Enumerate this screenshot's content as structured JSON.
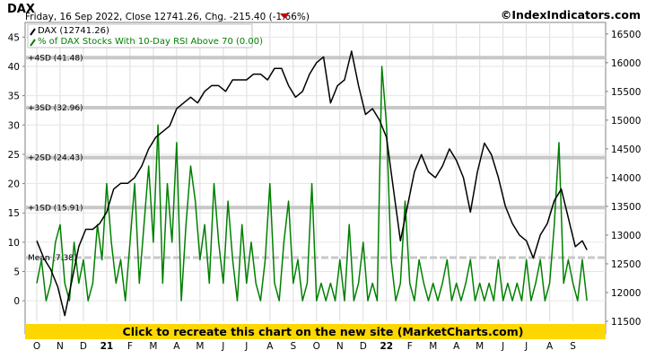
{
  "header": {
    "title": "DAX",
    "subtitle": "Friday, 16 Sep 2022, Close 12741.26, Chg. -215.40 (-1.66%)",
    "brand": "©IndexIndicators.com",
    "down_color": "#cc0000"
  },
  "banner": {
    "text": "Click to recreate this chart on the new site (MarketCharts.com)",
    "color": "#ffd700"
  },
  "chart_data": {
    "type": "line",
    "legend_position": "top-left",
    "x_categories": [
      "O",
      "N",
      "D",
      "21",
      "F",
      "M",
      "A",
      "M",
      "J",
      "J",
      "A",
      "S",
      "O",
      "N",
      "D",
      "22",
      "F",
      "M",
      "A",
      "M",
      "J",
      "J",
      "A",
      "S"
    ],
    "left_axis": {
      "ticks": [
        0,
        5,
        10,
        15,
        20,
        25,
        30,
        35,
        40,
        45
      ],
      "ylim": [
        -3.5,
        47.5
      ]
    },
    "right_axis": {
      "ticks": [
        11500,
        12000,
        12500,
        13000,
        13500,
        14000,
        14500,
        15000,
        15500,
        16000,
        16500
      ],
      "ylim": [
        11500,
        16700
      ]
    },
    "bands": [
      {
        "label": "+4SD (41.48)",
        "value": 41.48
      },
      {
        "label": "+3SD (32.96)",
        "value": 32.96
      },
      {
        "label": "+2SD (24.43)",
        "value": 24.43
      },
      {
        "label": "+1SD (15.91)",
        "value": 15.91
      },
      {
        "label": "Mean (7.38)",
        "value": 7.38
      }
    ],
    "series": [
      {
        "name": "DAX (12741.26)",
        "axis": "right",
        "color": "#000000",
        "x": [
          0,
          0.3,
          0.6,
          0.9,
          1.2,
          1.5,
          1.8,
          2.1,
          2.4,
          2.7,
          3.0,
          3.3,
          3.6,
          3.9,
          4.2,
          4.5,
          4.8,
          5.1,
          5.4,
          5.7,
          6.0,
          6.3,
          6.6,
          6.9,
          7.2,
          7.5,
          7.8,
          8.1,
          8.4,
          8.7,
          9.0,
          9.3,
          9.6,
          9.9,
          10.2,
          10.5,
          10.8,
          11.1,
          11.4,
          11.7,
          12.0,
          12.3,
          12.6,
          12.9,
          13.2,
          13.5,
          13.8,
          14.1,
          14.4,
          14.7,
          15.0,
          15.3,
          15.6,
          15.9,
          16.2,
          16.5,
          16.8,
          17.1,
          17.4,
          17.7,
          18.0,
          18.3,
          18.6,
          18.9,
          19.2,
          19.5,
          19.8,
          20.1,
          20.4,
          20.7,
          21.0,
          21.3,
          21.6,
          21.9,
          22.2,
          22.5,
          22.8,
          23.1,
          23.4,
          23.6
        ],
        "values": [
          12900,
          12600,
          12400,
          12100,
          11600,
          12200,
          12800,
          13100,
          13100,
          13200,
          13400,
          13800,
          13900,
          13900,
          14000,
          14200,
          14500,
          14700,
          14800,
          14900,
          15200,
          15300,
          15400,
          15300,
          15500,
          15600,
          15600,
          15500,
          15700,
          15700,
          15700,
          15800,
          15800,
          15700,
          15900,
          15900,
          15600,
          15400,
          15500,
          15800,
          16000,
          16100,
          15300,
          15600,
          15700,
          16200,
          15600,
          15100,
          15200,
          15000,
          14700,
          13800,
          12900,
          13500,
          14100,
          14400,
          14100,
          14000,
          14200,
          14500,
          14300,
          14000,
          13400,
          14100,
          14600,
          14400,
          14000,
          13500,
          13200,
          13000,
          12900,
          12600,
          13000,
          13200,
          13600,
          13800,
          13300,
          12800,
          12900,
          12741
        ]
      },
      {
        "name": "% of DAX Stocks With 10-Day RSI Above 70 (0.00)",
        "axis": "left",
        "color": "#008000",
        "x": [
          0,
          0.2,
          0.4,
          0.6,
          0.8,
          1.0,
          1.2,
          1.4,
          1.6,
          1.8,
          2.0,
          2.2,
          2.4,
          2.6,
          2.8,
          3.0,
          3.2,
          3.4,
          3.6,
          3.8,
          4.0,
          4.2,
          4.4,
          4.6,
          4.8,
          5.0,
          5.2,
          5.4,
          5.6,
          5.8,
          6.0,
          6.2,
          6.4,
          6.6,
          6.8,
          7.0,
          7.2,
          7.4,
          7.6,
          7.8,
          8.0,
          8.2,
          8.4,
          8.6,
          8.8,
          9.0,
          9.2,
          9.4,
          9.6,
          9.8,
          10.0,
          10.2,
          10.4,
          10.6,
          10.8,
          11.0,
          11.2,
          11.4,
          11.6,
          11.8,
          12.0,
          12.2,
          12.4,
          12.6,
          12.8,
          13.0,
          13.2,
          13.4,
          13.6,
          13.8,
          14.0,
          14.2,
          14.4,
          14.6,
          14.8,
          15.0,
          15.2,
          15.4,
          15.6,
          15.8,
          16.0,
          16.2,
          16.4,
          16.6,
          16.8,
          17.0,
          17.2,
          17.4,
          17.6,
          17.8,
          18.0,
          18.2,
          18.4,
          18.6,
          18.8,
          19.0,
          19.2,
          19.4,
          19.6,
          19.8,
          20.0,
          20.2,
          20.4,
          20.6,
          20.8,
          21.0,
          21.2,
          21.4,
          21.6,
          21.8,
          22.0,
          22.2,
          22.4,
          22.6,
          22.8,
          23.0,
          23.2,
          23.4,
          23.6
        ],
        "values": [
          3,
          7,
          0,
          3,
          10,
          13,
          3,
          0,
          10,
          3,
          7,
          0,
          3,
          13,
          7,
          20,
          10,
          3,
          7,
          0,
          10,
          20,
          3,
          13,
          23,
          10,
          30,
          3,
          20,
          10,
          27,
          0,
          13,
          23,
          17,
          7,
          13,
          3,
          20,
          10,
          3,
          17,
          7,
          0,
          13,
          3,
          10,
          3,
          0,
          7,
          20,
          3,
          0,
          10,
          17,
          3,
          7,
          0,
          3,
          20,
          0,
          3,
          0,
          3,
          0,
          7,
          0,
          13,
          0,
          3,
          10,
          0,
          3,
          0,
          40,
          30,
          7,
          0,
          3,
          17,
          3,
          0,
          7,
          3,
          0,
          3,
          0,
          3,
          7,
          0,
          3,
          0,
          3,
          7,
          0,
          3,
          0,
          3,
          0,
          7,
          0,
          3,
          0,
          3,
          0,
          7,
          0,
          3,
          7,
          0,
          3,
          13,
          27,
          3,
          7,
          3,
          0,
          7,
          0
        ]
      }
    ]
  }
}
